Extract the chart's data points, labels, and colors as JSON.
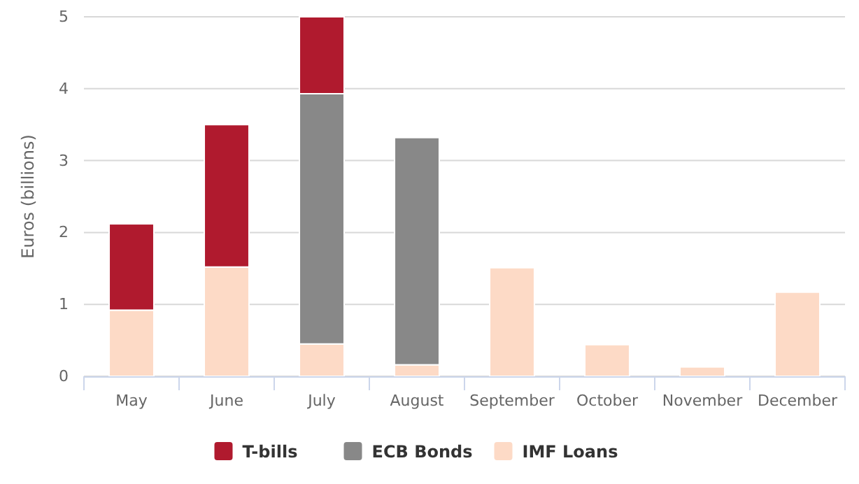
{
  "chart_data": {
    "type": "bar",
    "stacked": true,
    "ylabel": "Euros (billions)",
    "categories": [
      "May",
      "June",
      "July",
      "August",
      "September",
      "October",
      "November",
      "December"
    ],
    "series": [
      {
        "name": "IMF Loans",
        "color": "#fddac6",
        "values": [
          0.92,
          1.52,
          0.45,
          0.16,
          1.51,
          0.44,
          0.13,
          1.17
        ]
      },
      {
        "name": "ECB Bonds",
        "color": "#888888",
        "values": [
          null,
          null,
          3.48,
          3.16,
          null,
          null,
          null,
          null
        ]
      },
      {
        "name": "T-bills",
        "color": "#b01a2e",
        "values": [
          1.2,
          1.98,
          1.07,
          null,
          null,
          null,
          null,
          null
        ]
      }
    ],
    "ylim": [
      0,
      5
    ],
    "yticks": [
      0,
      1,
      2,
      3,
      4,
      5
    ],
    "grid": "y",
    "legend": "bottom"
  }
}
